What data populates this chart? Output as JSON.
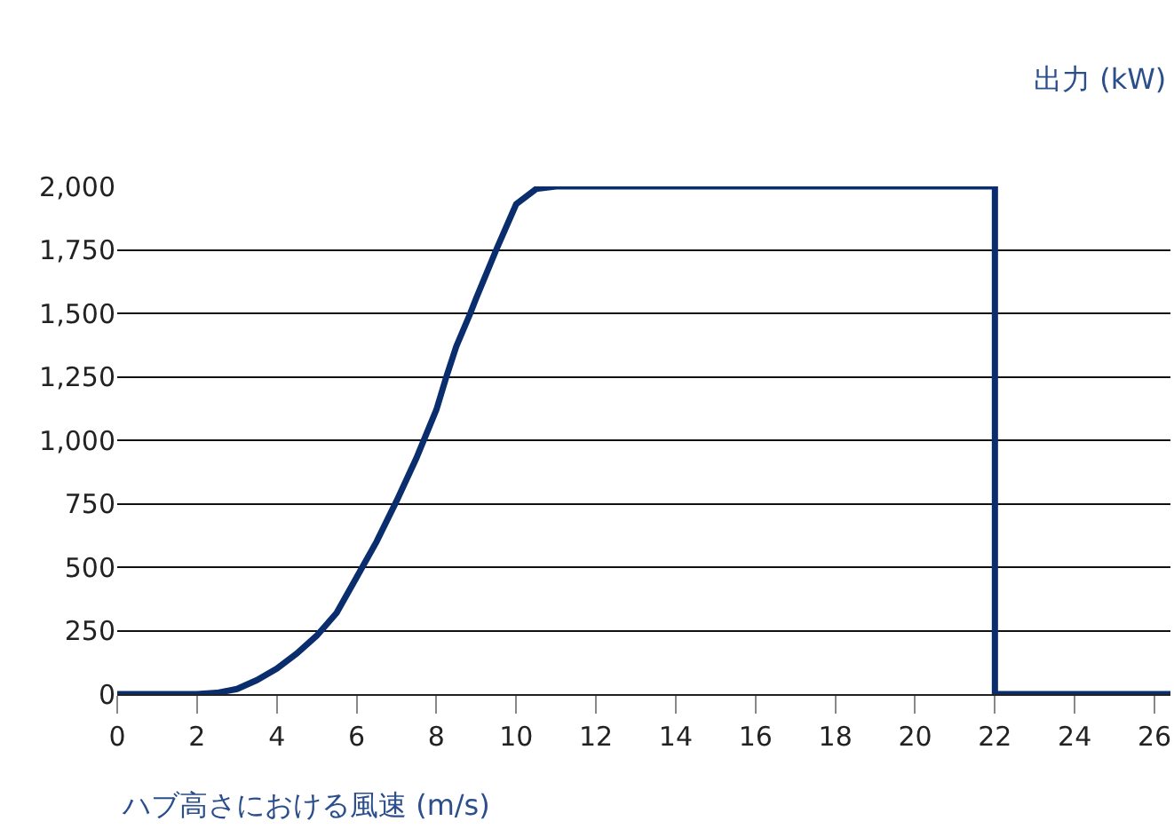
{
  "chart_data": {
    "type": "line",
    "xlabel": "ハブ高さにおける風速 (m/s)",
    "ylabel": "出力 (kW)",
    "x": [
      0,
      2,
      2.5,
      3,
      3.5,
      4,
      4.5,
      5,
      5.5,
      6,
      6.5,
      7,
      7.5,
      8,
      8.25,
      8.5,
      8.85,
      9,
      9.5,
      10,
      10.5,
      11,
      22,
      22,
      26.4
    ],
    "series": [
      {
        "color": "#0a2d6e",
        "values": [
          0,
          0,
          5,
          20,
          55,
          100,
          160,
          230,
          320,
          460,
          600,
          760,
          930,
          1120,
          1250,
          1370,
          1500,
          1560,
          1750,
          1930,
          1990,
          2000,
          2000,
          0,
          0
        ]
      }
    ],
    "xlim": [
      0,
      26.4
    ],
    "xticks": [
      0,
      2,
      4,
      6,
      8,
      10,
      12,
      14,
      16,
      18,
      20,
      22,
      24,
      26
    ],
    "ylim": [
      0,
      2000
    ],
    "yticks": [
      {
        "value": 0,
        "label": "0"
      },
      {
        "value": 250,
        "label": "250"
      },
      {
        "value": 500,
        "label": "500"
      },
      {
        "value": 750,
        "label": "750"
      },
      {
        "value": 1000,
        "label": "1,000"
      },
      {
        "value": 1250,
        "label": "1,250"
      },
      {
        "value": 1500,
        "label": "1,500"
      },
      {
        "value": 1750,
        "label": "1,750"
      },
      {
        "value": 2000,
        "label": "2,000"
      }
    ],
    "grid": "y",
    "legend": false,
    "marker": "none",
    "line_style": "solid"
  }
}
